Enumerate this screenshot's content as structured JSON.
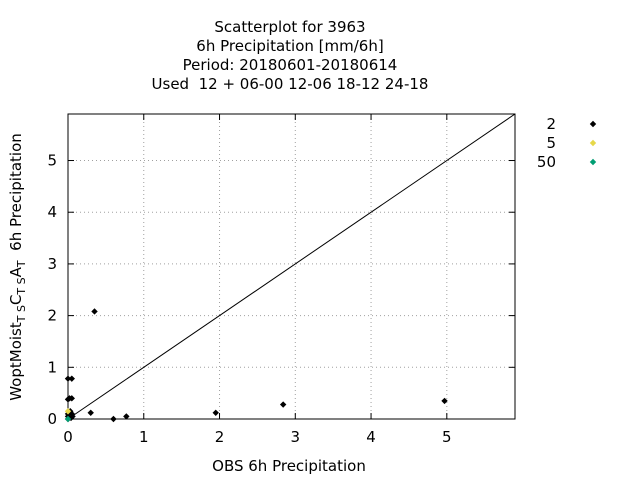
{
  "chart_data": {
    "type": "scatter",
    "title_lines": [
      "Scatterplot for     3963",
      "6h Precipitation [mm/6h]",
      "Period: 20180601-20180614",
      "Used  12 + 06-00 12-06 18-12 24-18"
    ],
    "xlabel": "OBS 6h Precipitation",
    "ylabel_parts": {
      "prefix": "WoptMoist",
      "sub1": "T S",
      "mid1": "C",
      "sub2": "T S",
      "mid2": "A",
      "sub3": "T",
      "suffix": "  6h Precipitation"
    },
    "xlim": [
      0,
      5.9
    ],
    "ylim": [
      0,
      5.9
    ],
    "xticks": [
      0,
      1,
      2,
      3,
      4,
      5
    ],
    "yticks": [
      0,
      1,
      2,
      3,
      4,
      5
    ],
    "grid": true,
    "diagonal": true,
    "legend_position": "right",
    "series": [
      {
        "name": "2",
        "color": "#000000",
        "points": [
          [
            0.0,
            0.0
          ],
          [
            0.0,
            0.05
          ],
          [
            0.0,
            0.1
          ],
          [
            0.0,
            0.38
          ],
          [
            0.0,
            0.78
          ],
          [
            0.02,
            0.4
          ],
          [
            0.03,
            0.15
          ],
          [
            0.04,
            0.02
          ],
          [
            0.05,
            0.78
          ],
          [
            0.05,
            0.4
          ],
          [
            0.05,
            0.1
          ],
          [
            0.06,
            0.05
          ],
          [
            0.3,
            0.12
          ],
          [
            0.35,
            2.08
          ],
          [
            0.6,
            0.0
          ],
          [
            0.77,
            0.05
          ],
          [
            1.95,
            0.12
          ],
          [
            2.84,
            0.28
          ],
          [
            4.97,
            0.35
          ]
        ]
      },
      {
        "name": "5",
        "color": "#e6d84a",
        "points": [
          [
            0.0,
            0.15
          ]
        ]
      },
      {
        "name": "50",
        "color": "#009e73",
        "points": [
          [
            0.0,
            0.0
          ]
        ]
      }
    ]
  }
}
